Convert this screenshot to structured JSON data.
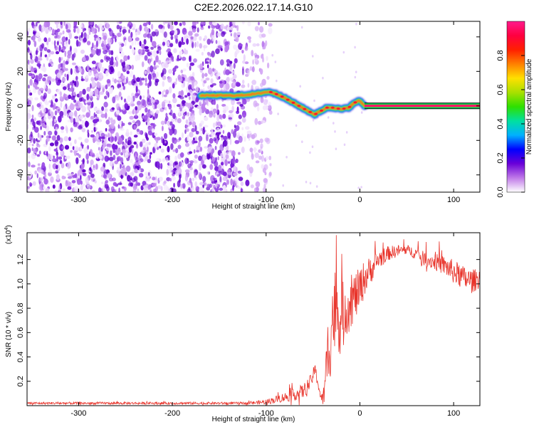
{
  "title": "C2E2.2026.022.17.14.G10",
  "chart_data": [
    {
      "type": "heatmap",
      "name": "spectrogram",
      "xlabel": "Height of straight line (km)",
      "ylabel": "Frequency (Hz)",
      "xlim": [
        -355,
        128
      ],
      "ylim": [
        -50,
        49
      ],
      "xticks": [
        -300,
        -200,
        -100,
        0,
        100
      ],
      "xtick_labels": [
        "-300",
        "-200",
        "-100",
        "0",
        "100"
      ],
      "yticks": [
        -40,
        -20,
        0,
        20,
        40
      ],
      "ytick_labels": [
        "-40",
        "-20",
        "0",
        "20",
        "40"
      ],
      "ridge": {
        "x": [
          -170,
          -150,
          -130,
          -110,
          -100,
          -95,
          -85,
          -75,
          -65,
          -55,
          -48,
          -42,
          -35,
          -28,
          -20,
          -12,
          -5,
          0,
          5
        ],
        "y": [
          6,
          6,
          6,
          7,
          8,
          8,
          6,
          3,
          0,
          -3,
          -5,
          -3,
          -1,
          -1,
          -2,
          -1,
          2,
          3,
          0
        ]
      },
      "tone": {
        "x_start": 5,
        "x_end": 128,
        "frequency": 0
      },
      "noise_region_x": [
        -355,
        -95
      ],
      "colorbar": {
        "label": "Normalized spectral amplitude",
        "range": [
          0,
          1
        ],
        "ticks": [
          0.0,
          0.2,
          0.4,
          0.6,
          0.8
        ],
        "tick_labels": [
          "0.0",
          "0.2",
          "0.4",
          "0.6",
          "0.8"
        ],
        "colors": [
          "#ffffff",
          "#c07ae8",
          "#6a00d8",
          "#0000ff",
          "#00b0ff",
          "#00e0a0",
          "#2ee000",
          "#a8e000",
          "#ffe000",
          "#ff8000",
          "#ff2000",
          "#ff0040",
          "#ff1a8c"
        ]
      }
    },
    {
      "type": "line",
      "name": "snr",
      "xlabel": "Height of straight line (km)",
      "ylabel": "SNR (10 * v/v)",
      "y_multiplier": "(x10",
      "y_multiplier_exp": "4",
      "y_multiplier_close": ")",
      "xlim": [
        -355,
        128
      ],
      "ylim": [
        0,
        1.42
      ],
      "xticks": [
        -300,
        -200,
        -100,
        0,
        100
      ],
      "xtick_labels": [
        "-300",
        "-200",
        "-100",
        "0",
        "100"
      ],
      "yticks": [
        0.2,
        0.4,
        0.6,
        0.8,
        1.0,
        1.2
      ],
      "ytick_labels": [
        "0.2",
        "0.4",
        "0.6",
        "0.8",
        "1.0",
        "1.2"
      ],
      "color": "#e8332a",
      "x": [
        -355,
        -300,
        -250,
        -200,
        -150,
        -120,
        -100,
        -90,
        -80,
        -70,
        -60,
        -52,
        -48,
        -45,
        -42,
        -40,
        -38,
        -36,
        -34,
        -32,
        -30,
        -28,
        -26,
        -24,
        -22,
        -20,
        -15,
        -10,
        -5,
        0,
        5,
        10,
        15,
        20,
        30,
        40,
        50,
        60,
        70,
        80,
        90,
        100,
        110,
        120,
        128
      ],
      "y": [
        0.02,
        0.02,
        0.02,
        0.02,
        0.02,
        0.02,
        0.03,
        0.05,
        0.07,
        0.09,
        0.12,
        0.2,
        0.3,
        0.2,
        0.08,
        0.05,
        0.1,
        0.25,
        0.45,
        0.55,
        0.7,
        0.75,
        0.8,
        0.78,
        0.72,
        0.7,
        0.8,
        0.85,
        0.9,
        0.95,
        1.05,
        1.1,
        1.15,
        1.2,
        1.25,
        1.27,
        1.28,
        1.25,
        1.2,
        1.18,
        1.15,
        1.1,
        1.05,
        1.02,
        1.05
      ],
      "noise": [
        0.01,
        0.01,
        0.01,
        0.01,
        0.01,
        0.01,
        0.02,
        0.03,
        0.04,
        0.05,
        0.06,
        0.06,
        0.05,
        0.05,
        0.05,
        0.05,
        0.1,
        0.2,
        0.3,
        0.35,
        0.4,
        0.4,
        0.35,
        0.3,
        0.3,
        0.3,
        0.25,
        0.22,
        0.2,
        0.18,
        0.15,
        0.12,
        0.1,
        0.08,
        0.06,
        0.05,
        0.04,
        0.05,
        0.06,
        0.07,
        0.08,
        0.1,
        0.1,
        0.1,
        0.08
      ]
    }
  ]
}
